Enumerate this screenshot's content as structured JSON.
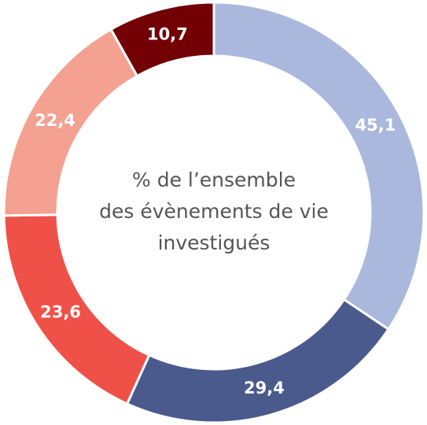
{
  "chart_data": {
    "type": "donut",
    "center_text": [
      "% de l’ensemble",
      "des évènements de vie",
      "investigués"
    ],
    "categories": [
      null,
      null,
      null,
      null,
      null
    ],
    "values": [
      45.1,
      29.4,
      23.6,
      22.4,
      10.7
    ],
    "value_labels": [
      "45,1",
      "29,4",
      "23,6",
      "22,4",
      "10,7"
    ],
    "colors": [
      "#a9b8dc",
      "#4a5a8d",
      "#ef5148",
      "#f4a191",
      "#730004"
    ]
  }
}
